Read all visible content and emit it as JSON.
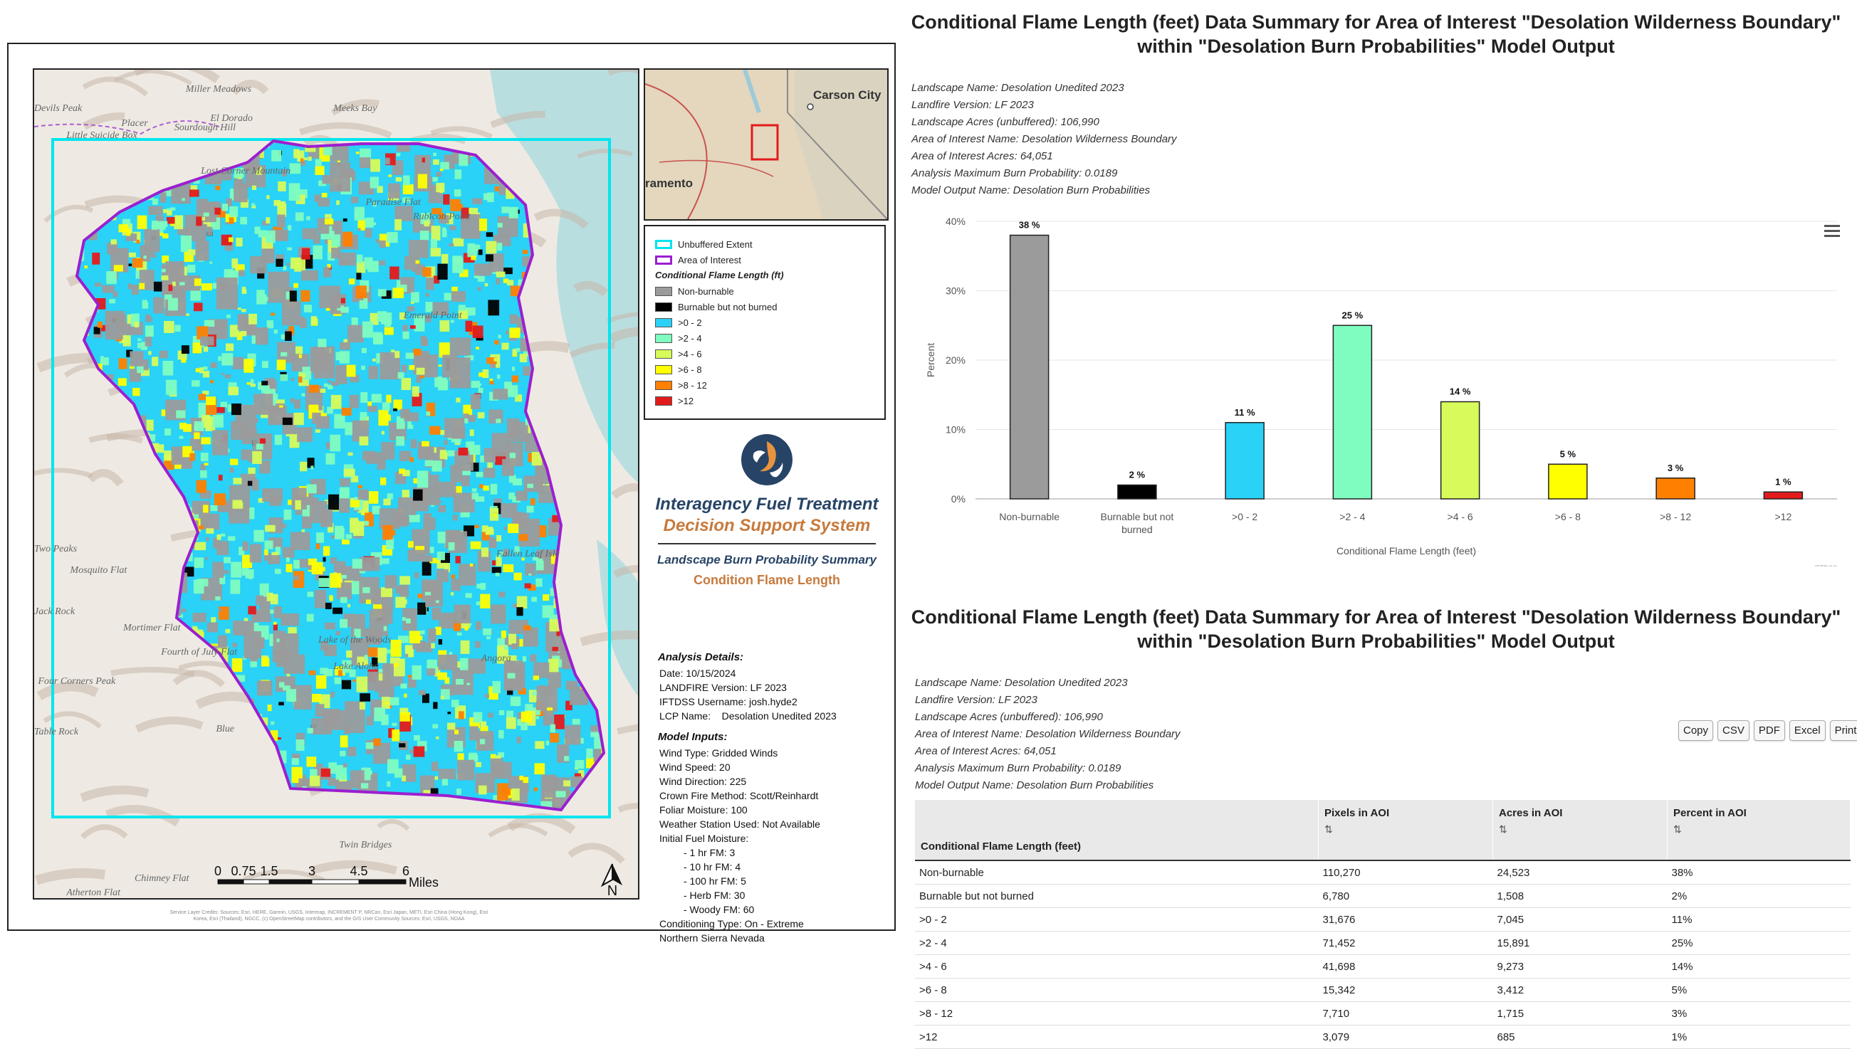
{
  "report": {
    "title_line1": "Conditional Flame Length (feet) Data Summary for Area of Interest \"Desolation Wilderness Boundary\"",
    "title_line2": "within \"Desolation Burn Probabilities\" Model Output",
    "meta": [
      "Landscape Name: Desolation Unedited 2023",
      "Landfire Version: LF 2023",
      "Landscape Acres (unbuffered): 106,990",
      "Area of Interest Name: Desolation Wilderness Boundary",
      "Area of Interest Acres: 64,051",
      "Analysis Maximum Burn Probability: 0.0189",
      "Model Output Name: Desolation Burn Probabilities"
    ],
    "export_buttons": [
      "Copy",
      "CSV",
      "PDF",
      "Excel",
      "Print"
    ]
  },
  "chart_data": {
    "type": "bar",
    "categories": [
      "Non-burnable",
      "Burnable but not burned",
      ">0 - 2",
      ">2 - 4",
      ">4 - 6",
      ">6 - 8",
      ">8 - 12",
      ">12"
    ],
    "category_lines": [
      [
        "Non-burnable"
      ],
      [
        "Burnable but not",
        "burned"
      ],
      [
        ">0 - 2"
      ],
      [
        ">2 - 4"
      ],
      [
        ">4 - 6"
      ],
      [
        ">6 - 8"
      ],
      [
        ">8 - 12"
      ],
      [
        ">12"
      ]
    ],
    "values": [
      38,
      2,
      11,
      25,
      14,
      5,
      3,
      1
    ],
    "data_labels": [
      "38 %",
      "2 %",
      "11 %",
      "25 %",
      "14 %",
      "5 %",
      "3 %",
      "1 %"
    ],
    "colors": [
      "#9b9b9b",
      "#000000",
      "#29d2f6",
      "#7ffcc0",
      "#d7fb5a",
      "#ffff00",
      "#ff8000",
      "#e31a1c"
    ],
    "xlabel": "Conditional Flame Length (feet)",
    "ylabel": "Percent",
    "ylim": [
      0,
      40
    ],
    "yticks": [
      0,
      10,
      20,
      30,
      40
    ],
    "ytick_labels": [
      "0%",
      "10%",
      "20%",
      "30%",
      "40%"
    ],
    "grid": true,
    "credit": "IFTDSS"
  },
  "table": {
    "headers": [
      "Conditional Flame Length (feet)",
      "Pixels in AOI",
      "Acres in AOI",
      "Percent in AOI"
    ],
    "sort_icon": "⇅",
    "rows": [
      [
        "Non-burnable",
        "110,270",
        "24,523",
        "38%"
      ],
      [
        "Burnable but not burned",
        "6,780",
        "1,508",
        "2%"
      ],
      [
        ">0 - 2",
        "31,676",
        "7,045",
        "11%"
      ],
      [
        ">2 - 4",
        "71,452",
        "15,891",
        "25%"
      ],
      [
        ">4 - 6",
        "41,698",
        "9,273",
        "14%"
      ],
      [
        ">6 - 8",
        "15,342",
        "3,412",
        "5%"
      ],
      [
        ">8 - 12",
        "7,710",
        "1,715",
        "3%"
      ],
      [
        ">12",
        "3,079",
        "685",
        "1%"
      ]
    ]
  },
  "map": {
    "place_labels": [
      "Miller Meadows",
      "Meeks Bay",
      "Devils Peak",
      "Placer",
      "El Dorado",
      "Sourdough Hill",
      "Little Suicide Box",
      "Lost Corner Mountain",
      "Paradise Flat",
      "Rubicon Point",
      "Emerald Point",
      "Two Peaks",
      "Mosquito Flat",
      "Jack Rock",
      "Mortimer Flat",
      "Fourth of July Flat",
      "Lake of the Woods",
      "Four Corners Peak",
      "Table Rock",
      "Blue",
      "Chimney Flat",
      "Atherton Flat",
      "Twin Bridges",
      "Angora",
      "Fallen Leaf Isle",
      "Lake Aloha"
    ],
    "inset_labels": [
      "Carson City",
      "ramento"
    ],
    "legend": {
      "items": [
        {
          "label": "Unbuffered Extent",
          "color": "#00e5ee",
          "outline": true
        },
        {
          "label": "Area of Interest",
          "color": "#9b1fd0",
          "outline": true
        }
      ],
      "heading": "Conditional Flame Length (ft)",
      "classes": [
        {
          "label": "Non-burnable",
          "color": "#9b9b9b"
        },
        {
          "label": "Burnable but not burned",
          "color": "#000000"
        },
        {
          "label": ">0 - 2",
          "color": "#29d2f6"
        },
        {
          "label": ">2 - 4",
          "color": "#7ffcc0"
        },
        {
          "label": ">4 - 6",
          "color": "#d7fb5a"
        },
        {
          "label": ">6 - 8",
          "color": "#ffff00"
        },
        {
          "label": ">8 - 12",
          "color": "#ff8000"
        },
        {
          "label": ">12",
          "color": "#e31a1c"
        }
      ]
    },
    "brand": {
      "title": "Interagency Fuel Treatment",
      "subtitle": "Decision Support System",
      "summary": "Landscape Burn Probability Summary",
      "summary2": "Condition Flame Length"
    },
    "analysis": {
      "heading": "Analysis Details:",
      "lines": [
        "Date: 10/15/2024",
        "LANDFIRE Version: LF 2023",
        "IFTDSS Username: josh.hyde2",
        "LCP Name:    Desolation Unedited 2023"
      ],
      "inputs_heading": "Model Inputs:",
      "inputs": [
        "Wind Type: Gridded Winds",
        "Wind Speed: 20",
        "Wind Direction: 225",
        "Crown Fire Method: Scott/Reinhardt",
        "Foliar Moisture: 100",
        "Weather Station Used: Not Available",
        "Initial Fuel Moisture:"
      ],
      "moisture": [
        "- 1 hr FM: 3",
        "- 10 hr FM: 4",
        "- 100 hr FM: 5",
        "- Herb FM: 30",
        "- Woody FM: 60"
      ],
      "tail": [
        "Conditioning Type: On - Extreme",
        "Northern Sierra Nevada"
      ]
    },
    "scale": {
      "ticks": [
        "0",
        "0.75",
        "1.5",
        "3",
        "4.5",
        "6"
      ],
      "unit": "Miles"
    },
    "north": "N",
    "credits": "Service Layer Credits: Sources: Esri, HERE, Garmin, USGS, Intermap, INCREMENT P, NRCan, Esri Japan, METI, Esri China (Hong Kong), Esri Korea, Esri (Thailand), NGCC, (c) OpenStreetMap contributors, and the GIS User Community Sources: Esri, USGS, NOAA"
  }
}
